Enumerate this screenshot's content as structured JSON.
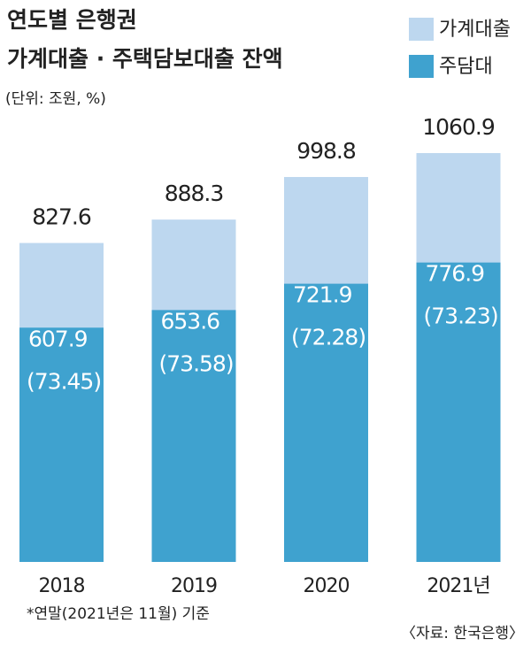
{
  "chart_data": {
    "type": "overlap-bar",
    "title": [
      "연도별 은행권",
      "가계대출 · 주택담보대출 잔액"
    ],
    "subtitle": "(단위: 조원, %)",
    "categories": [
      "2018",
      "2019",
      "2020",
      "2021년"
    ],
    "series": [
      {
        "name": "가계대출",
        "color": "#bdd7ef",
        "values": [
          827.6,
          888.3,
          998.8,
          1060.9
        ]
      },
      {
        "name": "주담대",
        "color": "#3fa2cf",
        "values": [
          607.9,
          653.6,
          721.9,
          776.9
        ],
        "shares": [
          73.45,
          73.58,
          72.28,
          73.23
        ],
        "share_labels": [
          "(73.45)",
          "(73.58)",
          "(72.28)",
          "(73.23)"
        ]
      }
    ],
    "footnote": "*연말(2021년은 11월) 기준",
    "source": "〈자료: 한국은행〉"
  }
}
